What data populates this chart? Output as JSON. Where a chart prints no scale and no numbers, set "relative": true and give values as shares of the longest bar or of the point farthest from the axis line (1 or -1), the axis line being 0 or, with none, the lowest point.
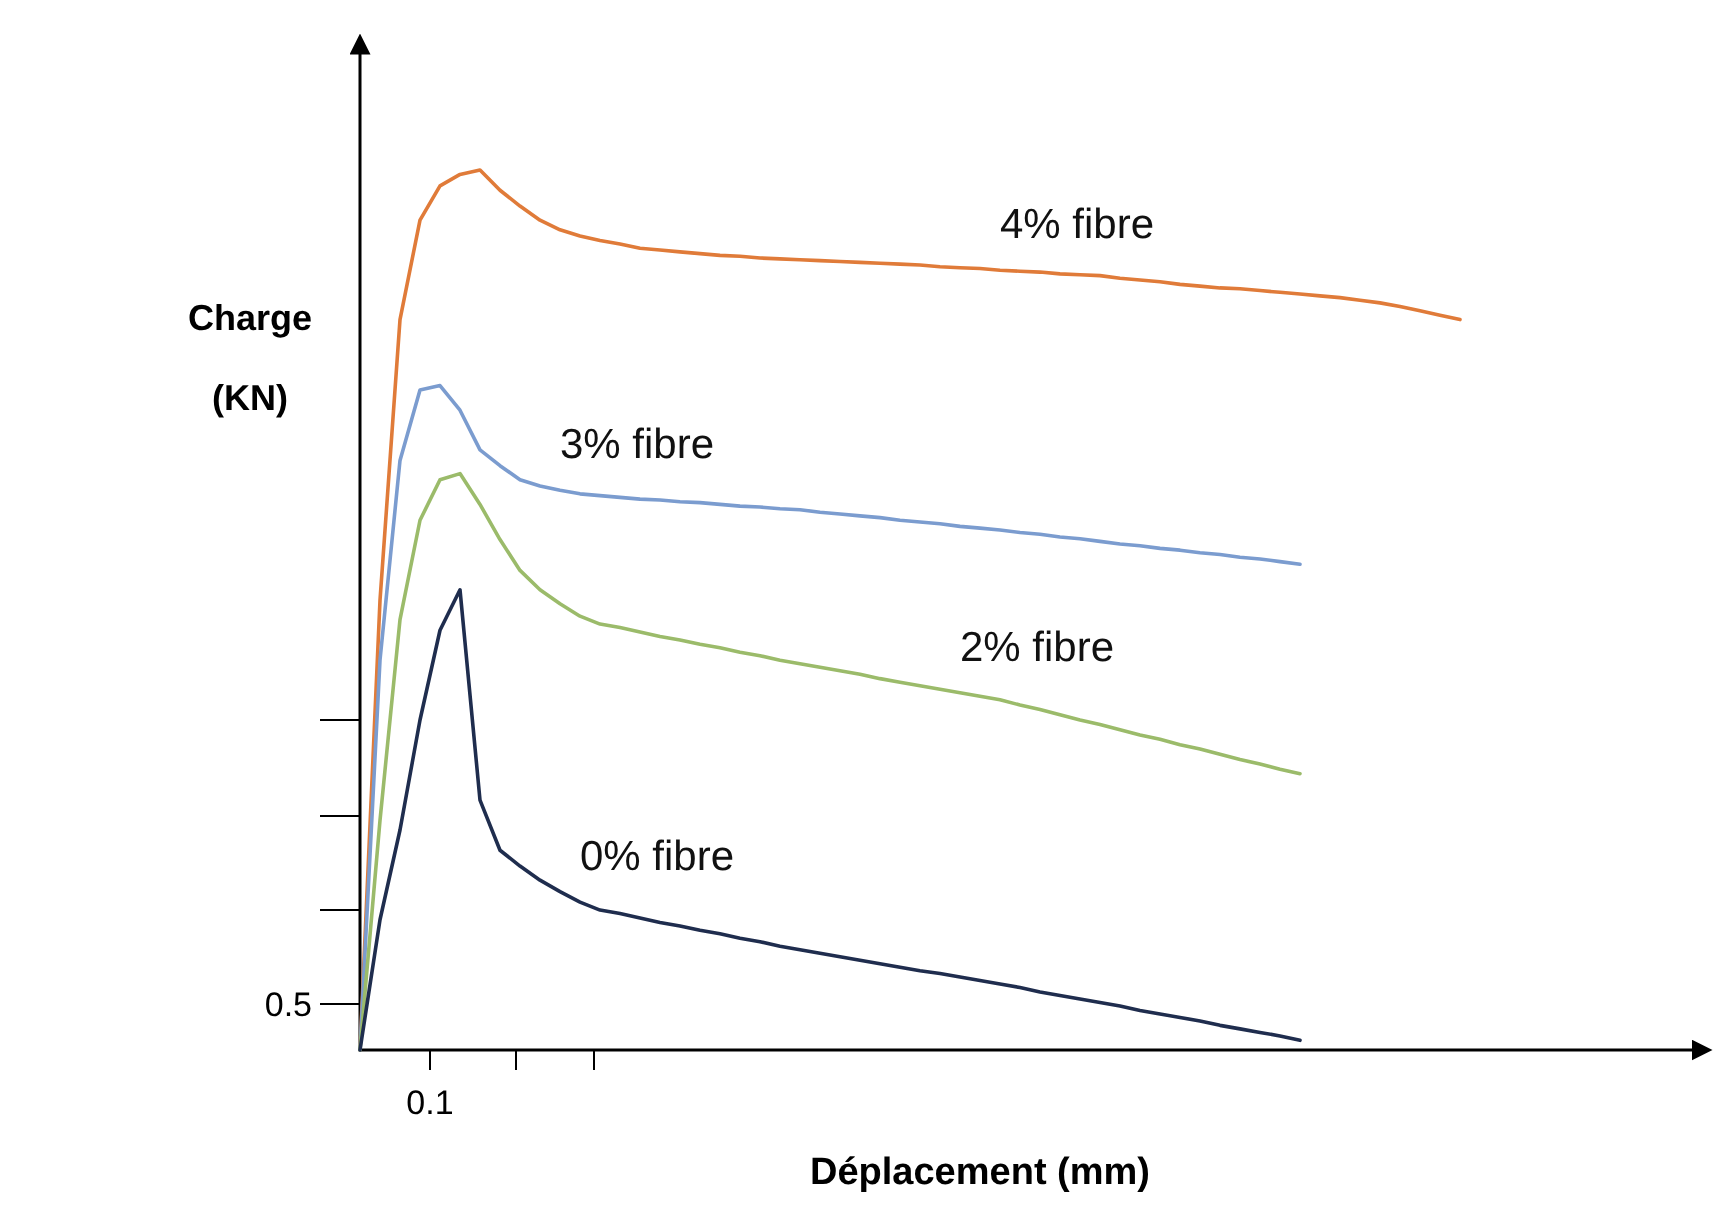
{
  "chart_data": {
    "type": "line",
    "relative": true,
    "xlabel": "Déplacement (mm)",
    "ylabel": "Charge (KN)",
    "annotations": [
      "0.5",
      "0.1"
    ],
    "marker": "none",
    "line_style": "solid",
    "categories": [
      null,
      null,
      null,
      null,
      null,
      null,
      null,
      null,
      null,
      null,
      null,
      null,
      null,
      null,
      null,
      null,
      null,
      null,
      null,
      null,
      null,
      null,
      null,
      null,
      null,
      null,
      null,
      null,
      null,
      null,
      null,
      null,
      null,
      null,
      null,
      null,
      null,
      null,
      null,
      null,
      null,
      null,
      null,
      null,
      null,
      null,
      null,
      null,
      null,
      null,
      null,
      null,
      null,
      null,
      null,
      null
    ],
    "series": [
      {
        "name": "4% fibre",
        "color": "#e07b39",
        "values": [
          0,
          0.511,
          0.83,
          0.943,
          0.982,
          0.995,
          1,
          0.977,
          0.959,
          0.943,
          0.932,
          0.925,
          0.92,
          0.916,
          0.911,
          0.909,
          0.907,
          0.905,
          0.903,
          0.902,
          0.9,
          0.899,
          0.898,
          0.897,
          0.896,
          0.895,
          0.894,
          0.893,
          0.892,
          0.89,
          0.889,
          0.888,
          0.886,
          0.885,
          0.884,
          0.882,
          0.881,
          0.88,
          0.877,
          0.875,
          0.873,
          0.87,
          0.868,
          0.866,
          0.865,
          0.863,
          0.861,
          0.859,
          0.857,
          0.855,
          0.852,
          0.849,
          0.845,
          0.84,
          0.835,
          0.83
        ]
      },
      {
        "name": "3% fibre",
        "color": "#7b9ccf",
        "values": [
          0,
          0.443,
          0.67,
          0.75,
          0.755,
          0.727,
          0.682,
          0.664,
          0.648,
          0.641,
          0.636,
          0.632,
          0.63,
          0.628,
          0.626,
          0.625,
          0.623,
          0.622,
          0.62,
          0.618,
          0.617,
          0.615,
          0.614,
          0.611,
          0.609,
          0.607,
          0.605,
          0.602,
          0.6,
          0.598,
          0.595,
          0.593,
          0.591,
          0.588,
          0.586,
          0.583,
          0.581,
          0.578,
          0.575,
          0.573,
          0.57,
          0.568,
          0.565,
          0.563,
          0.56,
          0.558,
          0.555,
          0.552,
          null,
          null,
          null,
          null,
          null,
          null,
          null,
          null
        ]
      },
      {
        "name": "2% fibre",
        "color": "#9bbb6a",
        "values": [
          0,
          0.261,
          0.489,
          0.602,
          0.648,
          0.655,
          0.62,
          0.58,
          0.545,
          0.523,
          0.507,
          0.493,
          0.484,
          0.48,
          0.475,
          0.47,
          0.466,
          0.461,
          0.457,
          0.452,
          0.448,
          0.443,
          0.439,
          0.435,
          0.431,
          0.427,
          0.422,
          0.418,
          0.414,
          0.41,
          0.406,
          0.402,
          0.398,
          0.392,
          0.387,
          0.381,
          0.375,
          0.37,
          0.364,
          0.358,
          0.353,
          0.347,
          0.342,
          0.336,
          0.33,
          0.325,
          0.319,
          0.314,
          null,
          null,
          null,
          null,
          null,
          null,
          null,
          null
        ]
      },
      {
        "name": "0% fibre",
        "color": "#1f2d4e",
        "values": [
          0,
          0.148,
          0.25,
          0.375,
          0.477,
          0.523,
          0.284,
          0.227,
          0.209,
          0.193,
          0.18,
          0.168,
          0.159,
          0.155,
          0.15,
          0.145,
          0.141,
          0.136,
          0.132,
          0.127,
          0.123,
          0.118,
          0.114,
          0.11,
          0.106,
          0.102,
          0.098,
          0.094,
          0.09,
          0.087,
          0.083,
          0.079,
          0.075,
          0.071,
          0.066,
          0.062,
          0.058,
          0.054,
          0.05,
          0.045,
          0.041,
          0.037,
          0.033,
          0.028,
          0.024,
          0.02,
          0.016,
          0.011,
          null,
          null,
          null,
          null,
          null,
          null,
          null,
          null
        ]
      }
    ]
  }
}
